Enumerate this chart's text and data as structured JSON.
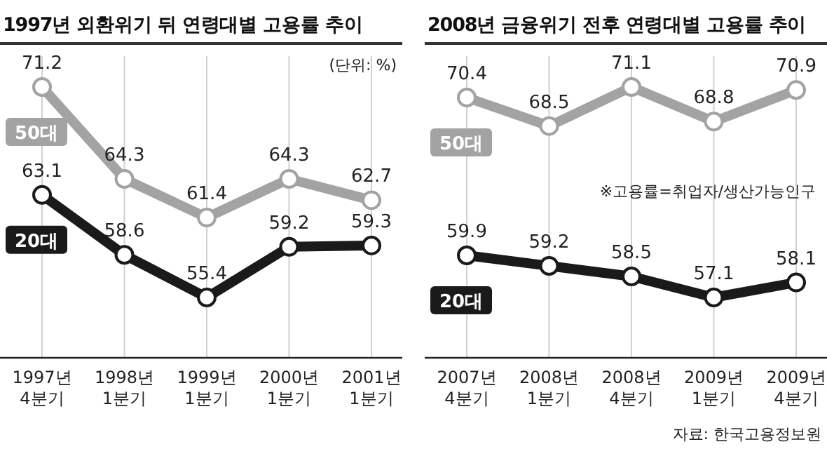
{
  "chart_data": [
    {
      "type": "line",
      "title": "1997년 외환위기 뒤 연령대별 고용률 추이",
      "categories": [
        "1997년 4분기",
        "1998년 1분기",
        "1999년 1분기",
        "2000년 1분기",
        "2001년 1분기"
      ],
      "series": [
        {
          "name": "50대",
          "color": "#a3a3a3",
          "values": [
            71.2,
            64.3,
            61.4,
            64.3,
            62.7
          ]
        },
        {
          "name": "20대",
          "color": "#1a1a1a",
          "values": [
            63.1,
            58.6,
            55.4,
            59.2,
            59.3
          ]
        }
      ],
      "data_labels": true,
      "marker": "circle",
      "grid": "x",
      "legend": false,
      "annotations": [
        "(단위: %)"
      ]
    },
    {
      "type": "line",
      "title": "2008년 금융위기 전후 연령대별 고용률 추이",
      "categories": [
        "2007년 4분기",
        "2008년 1분기",
        "2008년 4분기",
        "2009년 1분기",
        "2009년 4분기"
      ],
      "series": [
        {
          "name": "50대",
          "color": "#a3a3a3",
          "values": [
            70.4,
            68.5,
            71.1,
            68.8,
            70.9
          ]
        },
        {
          "name": "20대",
          "color": "#1a1a1a",
          "values": [
            59.9,
            59.2,
            58.5,
            57.1,
            58.1
          ]
        }
      ],
      "data_labels": true,
      "marker": "circle",
      "grid": "x",
      "legend": false,
      "annotations": [
        "※고용률=취업자/생산가능인구",
        "자료: 한국고용정보원"
      ]
    }
  ]
}
